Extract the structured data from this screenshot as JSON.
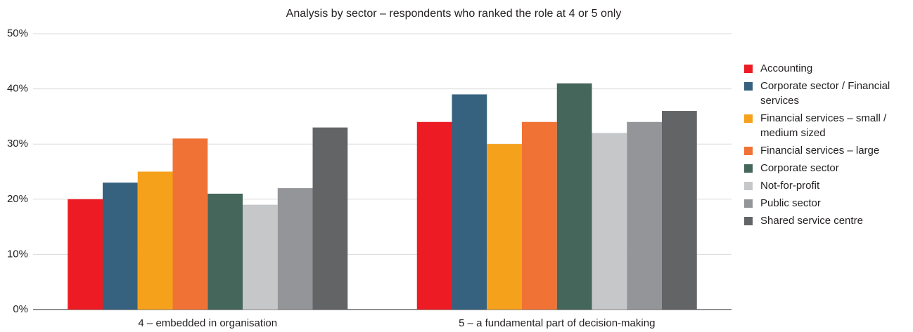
{
  "chart_data": {
    "type": "bar",
    "title": "Analysis by sector – respondents who ranked the role at 4 or 5 only",
    "categories": [
      "4 – embedded in organisation",
      "5 – a fundamental part of decision-making"
    ],
    "series": [
      {
        "name": "Accounting",
        "color": "#ed1c24",
        "values": [
          20,
          34
        ]
      },
      {
        "name": "Corporate sector / Financial services",
        "color": "#36627f",
        "values": [
          23,
          39
        ]
      },
      {
        "name": "Financial services – small / medium sized",
        "color": "#f6a11b",
        "values": [
          25,
          30
        ]
      },
      {
        "name": "Financial services – large",
        "color": "#f07235",
        "values": [
          31,
          34
        ]
      },
      {
        "name": "Corporate sector",
        "color": "#45665a",
        "values": [
          21,
          41
        ]
      },
      {
        "name": "Not-for-profit",
        "color": "#c6c7c9",
        "values": [
          19,
          32
        ]
      },
      {
        "name": "Public sector",
        "color": "#939598",
        "values": [
          22,
          34
        ]
      },
      {
        "name": "Shared service centre",
        "color": "#636466",
        "values": [
          33,
          36
        ]
      }
    ],
    "ylim": [
      0,
      50
    ],
    "yticks": [
      {
        "value": 0,
        "label": "0%"
      },
      {
        "value": 10,
        "label": "10%"
      },
      {
        "value": 20,
        "label": "20%"
      },
      {
        "value": 30,
        "label": "30%"
      },
      {
        "value": 40,
        "label": "40%"
      },
      {
        "value": 50,
        "label": "50%"
      }
    ],
    "grid": true,
    "legend": "right"
  }
}
